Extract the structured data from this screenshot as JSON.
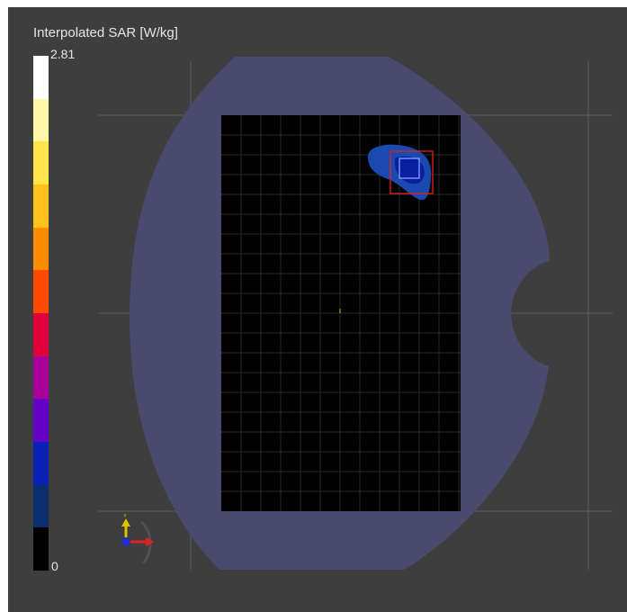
{
  "legend": {
    "title": "Interpolated SAR [W/kg]",
    "max_label": "2.81",
    "min_label": "0",
    "colors_top_to_bottom": [
      "#ffffff",
      "#fff7a8",
      "#ffe44a",
      "#ffc21a",
      "#ff8c00",
      "#ff4a00",
      "#e0003c",
      "#a8009a",
      "#6400c8",
      "#0a1fb4",
      "#0c2e6e",
      "#000000"
    ]
  },
  "scene": {
    "phantom_color": "#4a4a6e",
    "device_color": "#000000",
    "hotspot_colors": [
      "#1a4ab0",
      "#0a1fa0"
    ],
    "peak_box_color": "#e02020",
    "inner_box_color": "#8aa0ff",
    "grid_color": "#5a5a5a"
  },
  "axis_triad": {
    "x_color": "#e02020",
    "y_color": "#e0c000",
    "z_color": "#2030c0",
    "y_label": "Y"
  }
}
